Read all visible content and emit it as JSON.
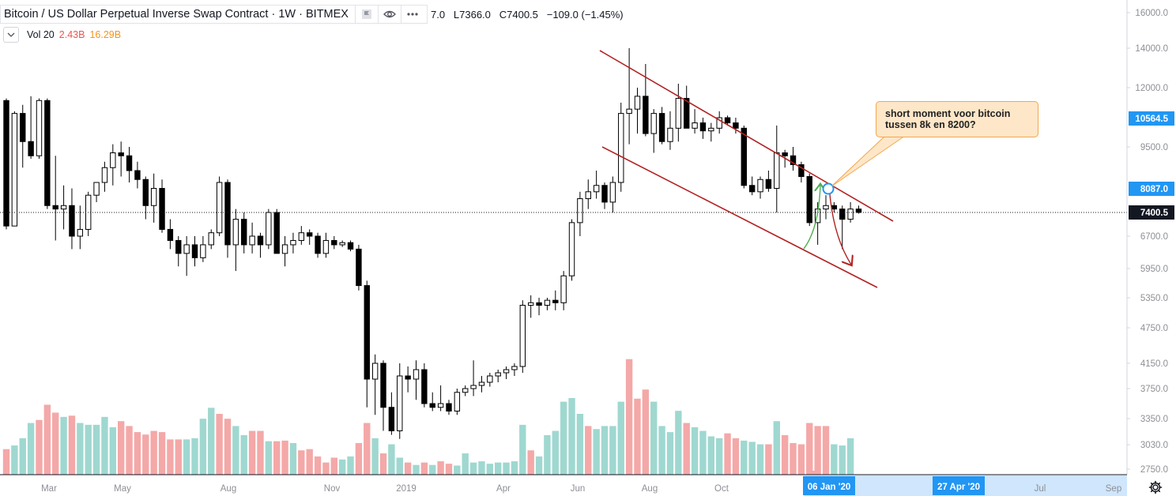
{
  "header": {
    "symbol": "Bitcoin / US Dollar Perpetual Inverse Swap Contract",
    "interval": "1W",
    "exchange": "BITMEX",
    "ohlc_fragment": "7.0",
    "low_label": "L",
    "low": "7366.0",
    "close_label": "C",
    "close": "7400.5",
    "change": "−109.0 (−1.45%)",
    "chevron_icon": "chevron-down-icon",
    "tool_icons": [
      "flag-icon",
      "eye-icon",
      "more-icon"
    ]
  },
  "volume_indicator": {
    "label": "Vol 20",
    "value_a": "2.43B",
    "value_b": "16.29B"
  },
  "annotation": {
    "line1": "short moment voor bitcoin",
    "line2": "tussen 8k en 8200?"
  },
  "time_badges": {
    "current": "06 Jan '20",
    "future": "27 Apr '20"
  },
  "colors": {
    "up": "#ffffff",
    "down": "#000000",
    "vol_up": "#9fd8d0",
    "vol_down": "#f4a8a8",
    "channel": "#b22222",
    "arrow_green": "#4caf50",
    "arrow_red": "#b22222",
    "badge": "#2196f3"
  },
  "chart_data": {
    "type": "candlestick",
    "title": "Bitcoin / US Dollar Perpetual Inverse Swap Contract · 1W · BITMEX",
    "x_ticks": [
      "Mar",
      "May",
      "Aug",
      "Nov",
      "2019",
      "Apr",
      "Jun",
      "Aug",
      "Oct",
      "06 Jan '20",
      "27 Apr '20",
      "Jul",
      "Sep"
    ],
    "y_ticks": [
      "16000.0",
      "14000.0",
      "12000.0",
      "9500.0",
      "6700.0",
      "5950.0",
      "5350.0",
      "4750.0",
      "4150.0",
      "3750.0",
      "3350.0",
      "3030.0",
      "2750.0"
    ],
    "price_badges": [
      {
        "label": "10564.5",
        "kind": "blue"
      },
      {
        "label": "8087.0",
        "kind": "blue"
      },
      {
        "label": "7400.5",
        "kind": "dark"
      }
    ],
    "candles": [
      [
        11400,
        11500,
        6900,
        7000
      ],
      [
        7000,
        10900,
        7000,
        10800
      ],
      [
        10800,
        11200,
        8800,
        9700
      ],
      [
        9700,
        11600,
        9100,
        9200
      ],
      [
        9200,
        11500,
        9100,
        11400
      ],
      [
        11400,
        11500,
        7500,
        7600
      ],
      [
        7600,
        9200,
        6600,
        7500
      ],
      [
        7500,
        8200,
        6900,
        7600
      ],
      [
        7600,
        8100,
        6400,
        6700
      ],
      [
        6700,
        7600,
        6400,
        6900
      ],
      [
        6900,
        8000,
        6700,
        7900
      ],
      [
        7900,
        8300,
        7700,
        8300
      ],
      [
        8300,
        9000,
        8000,
        8800
      ],
      [
        8800,
        9600,
        8200,
        9300
      ],
      [
        9300,
        9700,
        8500,
        9200
      ],
      [
        9200,
        9500,
        8300,
        8700
      ],
      [
        8700,
        9000,
        8100,
        8400
      ],
      [
        8400,
        8500,
        7200,
        7600
      ],
      [
        7600,
        8600,
        7100,
        8100
      ],
      [
        8100,
        8400,
        6800,
        6900
      ],
      [
        6900,
        7200,
        6400,
        6600
      ],
      [
        6600,
        6700,
        6000,
        6300
      ],
      [
        6300,
        6700,
        5800,
        6500
      ],
      [
        6500,
        6700,
        6000,
        6200
      ],
      [
        6200,
        6700,
        6100,
        6500
      ],
      [
        6500,
        6900,
        6400,
        6800
      ],
      [
        6800,
        8500,
        6700,
        8300
      ],
      [
        8300,
        8400,
        6200,
        6500
      ],
      [
        6500,
        7500,
        5900,
        7200
      ],
      [
        7200,
        7400,
        6300,
        6500
      ],
      [
        6500,
        7100,
        6300,
        6700
      ],
      [
        6700,
        6800,
        6200,
        6500
      ],
      [
        6500,
        7500,
        6400,
        7400
      ],
      [
        7400,
        7500,
        6300,
        6300
      ],
      [
        6300,
        6700,
        6000,
        6500
      ],
      [
        6500,
        6800,
        6300,
        6600
      ],
      [
        6600,
        7000,
        6500,
        6800
      ],
      [
        6800,
        6900,
        6500,
        6700
      ],
      [
        6700,
        6800,
        6200,
        6300
      ],
      [
        6300,
        6800,
        6200,
        6600
      ],
      [
        6600,
        6700,
        6400,
        6500
      ],
      [
        6500,
        6600,
        6450,
        6550
      ],
      [
        6550,
        6600,
        6350,
        6400
      ],
      [
        6400,
        6500,
        5500,
        5600
      ],
      [
        5600,
        5700,
        3500,
        3900
      ],
      [
        3900,
        4300,
        3400,
        4150
      ],
      [
        4150,
        4200,
        3200,
        3500
      ],
      [
        3500,
        3700,
        3150,
        3200
      ],
      [
        3200,
        4150,
        3100,
        3950
      ],
      [
        3950,
        4100,
        3700,
        3900
      ],
      [
        3900,
        4200,
        3600,
        4050
      ],
      [
        4050,
        4150,
        3500,
        3550
      ],
      [
        3550,
        3700,
        3450,
        3500
      ],
      [
        3500,
        3800,
        3450,
        3550
      ],
      [
        3550,
        3600,
        3400,
        3450
      ],
      [
        3450,
        3750,
        3400,
        3700
      ],
      [
        3700,
        3800,
        3650,
        3750
      ],
      [
        3750,
        4200,
        3650,
        3800
      ],
      [
        3800,
        3950,
        3700,
        3850
      ],
      [
        3850,
        4000,
        3780,
        3950
      ],
      [
        3950,
        4050,
        3850,
        4000
      ],
      [
        4000,
        4100,
        3900,
        4050
      ],
      [
        4050,
        4150,
        3950,
        4100
      ],
      [
        4100,
        5300,
        4000,
        5200
      ],
      [
        5200,
        5400,
        4950,
        5250
      ],
      [
        5250,
        5350,
        5000,
        5200
      ],
      [
        5200,
        5350,
        5100,
        5300
      ],
      [
        5300,
        5500,
        5100,
        5250
      ],
      [
        5250,
        5900,
        5100,
        5800
      ],
      [
        5800,
        7200,
        5700,
        7100
      ],
      [
        7100,
        8000,
        6700,
        7800
      ],
      [
        7800,
        8400,
        7500,
        8000
      ],
      [
        8000,
        8700,
        7800,
        8200
      ],
      [
        8200,
        8300,
        7500,
        7700
      ],
      [
        7700,
        8500,
        7400,
        8300
      ],
      [
        8300,
        11300,
        8000,
        10800
      ],
      [
        10800,
        14000,
        9600,
        11000
      ],
      [
        11000,
        12000,
        10000,
        11600
      ],
      [
        11600,
        13200,
        9900,
        10000
      ],
      [
        10000,
        11000,
        9300,
        10800
      ],
      [
        10800,
        11100,
        9600,
        9700
      ],
      [
        9700,
        10900,
        9400,
        10200
      ],
      [
        10200,
        12200,
        9700,
        11500
      ],
      [
        11500,
        12100,
        10200,
        10200
      ],
      [
        10200,
        11000,
        10000,
        10400
      ],
      [
        10400,
        10600,
        9800,
        10100
      ],
      [
        10100,
        10400,
        9700,
        10200
      ],
      [
        10200,
        10900,
        10000,
        10600
      ],
      [
        10600,
        10700,
        10300,
        10400
      ],
      [
        10400,
        10600,
        10000,
        10200
      ],
      [
        10200,
        10300,
        8100,
        8200
      ],
      [
        8200,
        8500,
        7900,
        8000
      ],
      [
        8000,
        8500,
        7800,
        8400
      ],
      [
        8400,
        8700,
        8000,
        8100
      ],
      [
        8100,
        10300,
        7400,
        9300
      ],
      [
        9300,
        9400,
        8800,
        9200
      ],
      [
        9200,
        9500,
        8700,
        8900
      ],
      [
        8900,
        9000,
        8300,
        8500
      ],
      [
        8500,
        8600,
        7000,
        7100
      ],
      [
        7100,
        7700,
        6500,
        7500
      ],
      [
        7500,
        7900,
        7200,
        7600
      ],
      [
        7600,
        7700,
        7400,
        7500
      ],
      [
        7500,
        7600,
        6400,
        7200
      ],
      [
        7200,
        7700,
        7100,
        7500
      ],
      [
        7500,
        7600,
        7366,
        7400.5
      ]
    ],
    "volume": [
      [
        0.42,
        0
      ],
      [
        0.48,
        1
      ],
      [
        0.6,
        1
      ],
      [
        0.85,
        1
      ],
      [
        0.9,
        0
      ],
      [
        1.15,
        0
      ],
      [
        1.02,
        0
      ],
      [
        0.95,
        1
      ],
      [
        0.97,
        0
      ],
      [
        0.85,
        1
      ],
      [
        0.82,
        1
      ],
      [
        0.82,
        1
      ],
      [
        0.95,
        1
      ],
      [
        0.78,
        1
      ],
      [
        0.88,
        0
      ],
      [
        0.8,
        0
      ],
      [
        0.7,
        0
      ],
      [
        0.66,
        0
      ],
      [
        0.72,
        0
      ],
      [
        0.7,
        0
      ],
      [
        0.58,
        0
      ],
      [
        0.58,
        0
      ],
      [
        0.58,
        1
      ],
      [
        0.6,
        1
      ],
      [
        0.92,
        1
      ],
      [
        1.1,
        1
      ],
      [
        1.0,
        0
      ],
      [
        0.92,
        0
      ],
      [
        0.8,
        1
      ],
      [
        0.65,
        1
      ],
      [
        0.72,
        0
      ],
      [
        0.72,
        0
      ],
      [
        0.55,
        1
      ],
      [
        0.55,
        0
      ],
      [
        0.56,
        0
      ],
      [
        0.52,
        1
      ],
      [
        0.4,
        0
      ],
      [
        0.42,
        0
      ],
      [
        0.3,
        0
      ],
      [
        0.2,
        0
      ],
      [
        0.28,
        0
      ],
      [
        0.25,
        1
      ],
      [
        0.3,
        1
      ],
      [
        0.52,
        0
      ],
      [
        0.85,
        0
      ],
      [
        0.6,
        1
      ],
      [
        0.35,
        0
      ],
      [
        0.5,
        1
      ],
      [
        0.28,
        1
      ],
      [
        0.2,
        0
      ],
      [
        0.16,
        1
      ],
      [
        0.2,
        0
      ],
      [
        0.16,
        1
      ],
      [
        0.22,
        0
      ],
      [
        0.18,
        0
      ],
      [
        0.15,
        1
      ],
      [
        0.35,
        1
      ],
      [
        0.2,
        1
      ],
      [
        0.22,
        1
      ],
      [
        0.18,
        1
      ],
      [
        0.2,
        1
      ],
      [
        0.2,
        1
      ],
      [
        0.22,
        1
      ],
      [
        0.82,
        1
      ],
      [
        0.4,
        0
      ],
      [
        0.3,
        1
      ],
      [
        0.65,
        1
      ],
      [
        0.72,
        1
      ],
      [
        1.2,
        1
      ],
      [
        1.26,
        1
      ],
      [
        1.0,
        1
      ],
      [
        0.8,
        0
      ],
      [
        0.75,
        1
      ],
      [
        0.8,
        1
      ],
      [
        0.8,
        1
      ],
      [
        1.2,
        1
      ],
      [
        1.9,
        0
      ],
      [
        1.25,
        0
      ],
      [
        1.4,
        0
      ],
      [
        1.2,
        1
      ],
      [
        0.8,
        1
      ],
      [
        0.7,
        1
      ],
      [
        1.05,
        1
      ],
      [
        0.85,
        0
      ],
      [
        0.78,
        1
      ],
      [
        0.72,
        1
      ],
      [
        0.63,
        1
      ],
      [
        0.6,
        1
      ],
      [
        0.68,
        0
      ],
      [
        0.6,
        0
      ],
      [
        0.56,
        1
      ],
      [
        0.54,
        1
      ],
      [
        0.5,
        1
      ],
      [
        0.5,
        0
      ],
      [
        0.88,
        1
      ],
      [
        0.65,
        0
      ],
      [
        0.52,
        0
      ],
      [
        0.5,
        0
      ],
      [
        0.85,
        0
      ],
      [
        0.8,
        0
      ],
      [
        0.8,
        0
      ],
      [
        0.5,
        1
      ],
      [
        0.48,
        1
      ],
      [
        0.6,
        1
      ]
    ],
    "annotations": [
      "descending channel",
      "green arrow up to 8087.0",
      "red arrow down"
    ]
  }
}
